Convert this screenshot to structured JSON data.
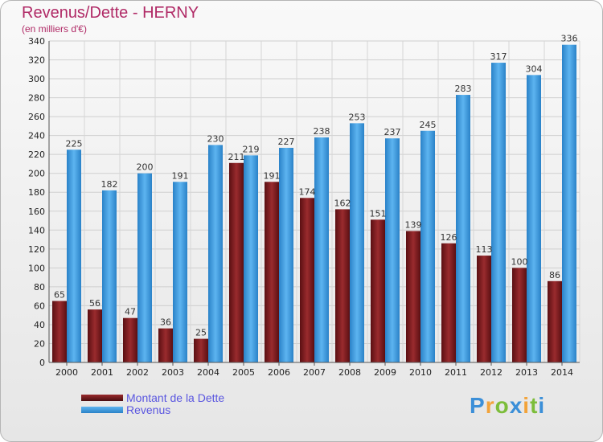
{
  "header": {
    "title": "Revenus/Dette - HERNY",
    "subtitle": "(en milliers d'€)"
  },
  "legend": {
    "debt_label": "Montant de la Dette",
    "revenue_label": "Revenus",
    "text_color": "#5a56e0"
  },
  "logo": {
    "text": "Proxiti",
    "letters": [
      {
        "ch": "P",
        "color": "#3b8fd8"
      },
      {
        "ch": "r",
        "color": "#f2a33a"
      },
      {
        "ch": "o",
        "color": "#7cbd3a"
      },
      {
        "ch": "x",
        "color": "#3b8fd8"
      },
      {
        "ch": "i",
        "color": "#f2a33a"
      },
      {
        "ch": "t",
        "color": "#7cbd3a"
      },
      {
        "ch": "i",
        "color": "#3b8fd8"
      }
    ]
  },
  "colors": {
    "debt": "#7a1c1c",
    "revenue": "#3b9de3",
    "title": "#b02a66"
  },
  "chart_data": {
    "type": "bar",
    "title": "Revenus/Dette - HERNY",
    "subtitle": "(en milliers d'€)",
    "categories": [
      "2000",
      "2001",
      "2002",
      "2003",
      "2004",
      "2005",
      "2006",
      "2007",
      "2008",
      "2009",
      "2010",
      "2011",
      "2012",
      "2013",
      "2014"
    ],
    "series": [
      {
        "name": "Montant de la Dette",
        "values": [
          65,
          56,
          47,
          36,
          25,
          211,
          191,
          174,
          162,
          151,
          139,
          126,
          113,
          100,
          86
        ],
        "labels": [
          "65",
          "56",
          "47",
          "36",
          "25",
          "211",
          "191",
          "174",
          "162",
          "151",
          "139",
          "126",
          "113",
          "100",
          "86"
        ]
      },
      {
        "name": "Revenus",
        "values": [
          225,
          182,
          200,
          191,
          230,
          219,
          227,
          238,
          253,
          237,
          245,
          283,
          317,
          304,
          336
        ],
        "labels": [
          "225",
          "182",
          "200",
          "191",
          "230",
          "219",
          "227",
          "238",
          "253",
          "237",
          "245",
          "283",
          "317",
          "304",
          "336"
        ]
      }
    ],
    "ylim": [
      0,
      340
    ],
    "yticks": [
      "0",
      "20",
      "40",
      "60",
      "80",
      "100",
      "120",
      "140",
      "160",
      "180",
      "200",
      "220",
      "240",
      "260",
      "280",
      "300",
      "320",
      "340"
    ],
    "grid": true,
    "legend_position": "bottom-left"
  }
}
